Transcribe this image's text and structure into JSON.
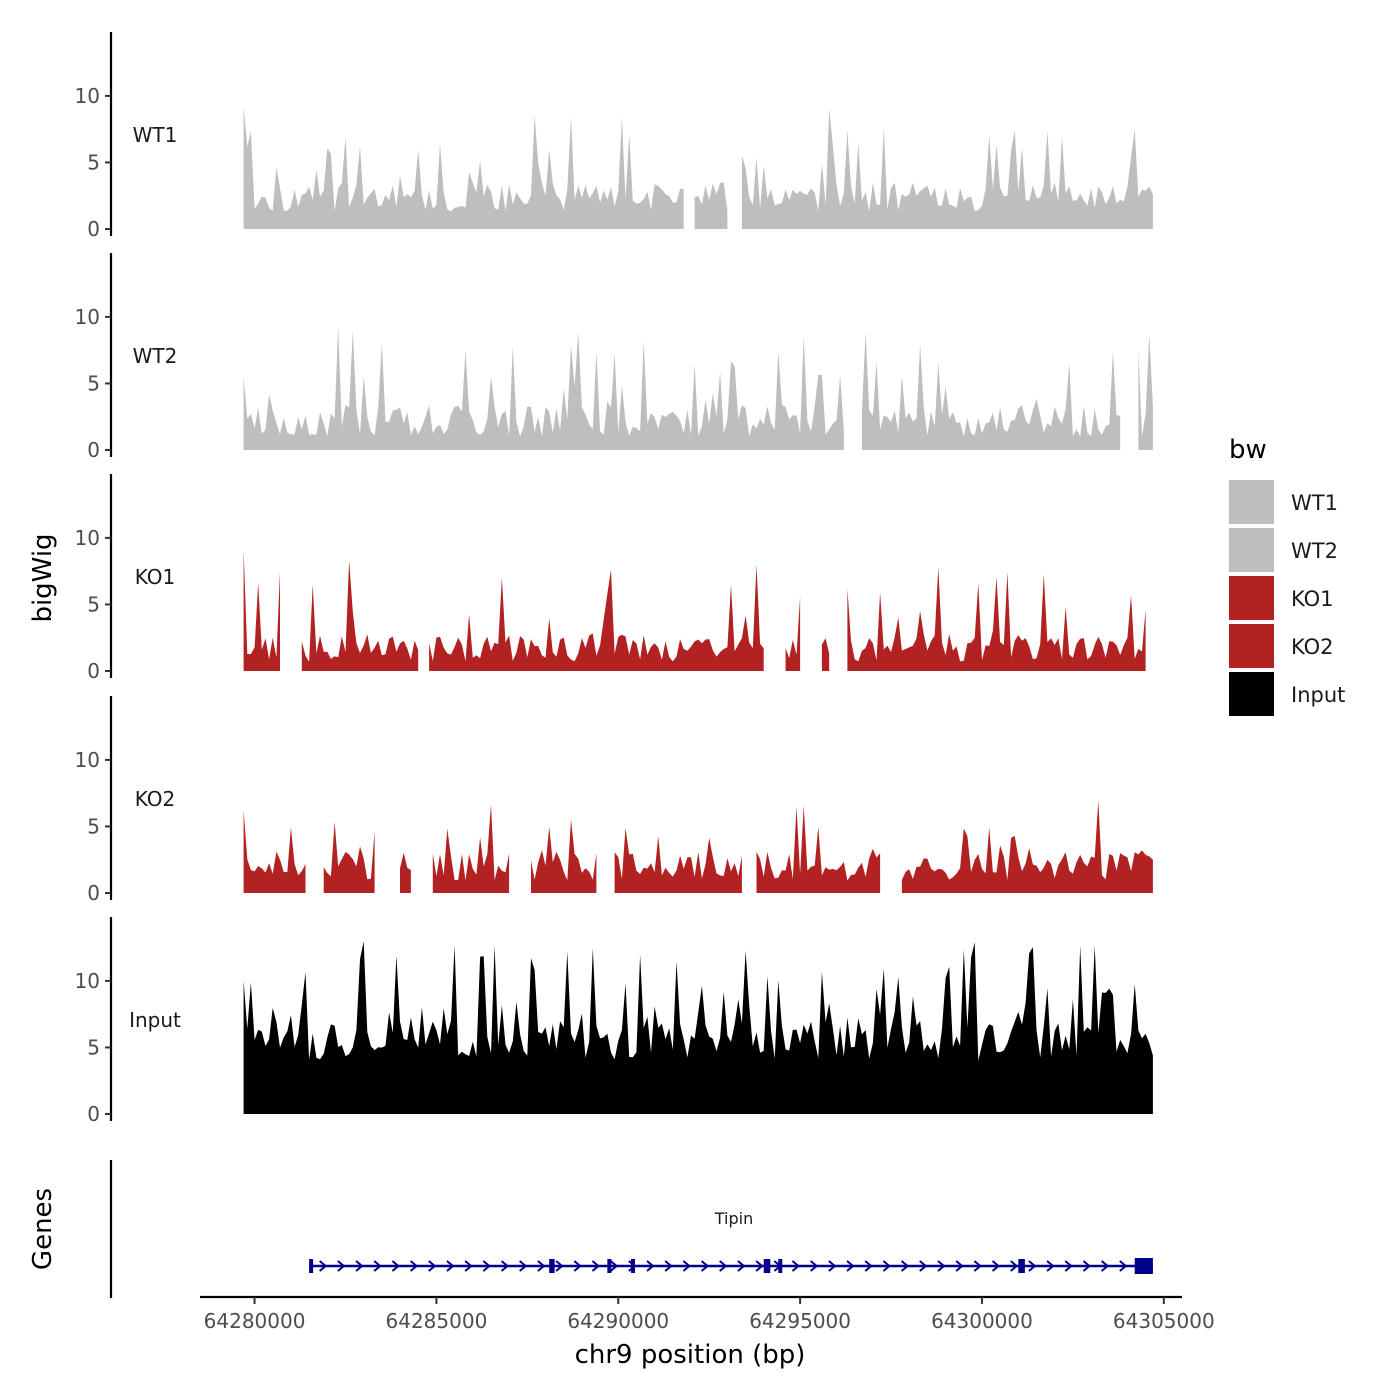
{
  "chart_data": {
    "type": "area",
    "chromosome": "chr9",
    "xlabel": "chr9 position (bp)",
    "ylabel": "bigWig",
    "genes_label": "Genes",
    "xlim": [
      64278500,
      64305500
    ],
    "x_ticks": [
      64280000,
      64285000,
      64290000,
      64295000,
      64300000,
      64305000
    ],
    "x_tick_labels": [
      "64280000",
      "64285000",
      "64290000",
      "64295000",
      "64300000",
      "64305000"
    ],
    "ylim": [
      0,
      14.5
    ],
    "y_ticks": [
      0,
      5,
      10
    ],
    "y_tick_labels": [
      "0",
      "5",
      "10"
    ],
    "data_range": [
      64279700,
      64304700
    ],
    "bin_size": 100,
    "grid": false,
    "legend": {
      "title": "bw",
      "position": "right",
      "entries": [
        {
          "label": "WT1",
          "color": "#bebebe"
        },
        {
          "label": "WT2",
          "color": "#bebebe"
        },
        {
          "label": "KO1",
          "color": "#b22222"
        },
        {
          "label": "KO2",
          "color": "#b22222"
        },
        {
          "label": "Input",
          "color": "#000000"
        }
      ]
    },
    "series": [
      {
        "name": "WT1",
        "color": "#bebebe",
        "seed": 11,
        "base": 1.3,
        "mean": 2.4,
        "max": 9.2,
        "peak_prob": 0.2,
        "gap_prob": 0.012,
        "gap_len": 3,
        "first": 9.2
      },
      {
        "name": "WT2",
        "color": "#bebebe",
        "seed": 23,
        "base": 1.0,
        "mean": 2.2,
        "max": 9.5,
        "peak_prob": 0.2,
        "gap_prob": 0.012,
        "gap_len": 3,
        "first": 5.5
      },
      {
        "name": "KO1",
        "color": "#b22222",
        "seed": 37,
        "base": 0.7,
        "mean": 1.7,
        "max": 9.1,
        "peak_prob": 0.2,
        "gap_prob": 0.018,
        "gap_len": 4,
        "first": 9.1
      },
      {
        "name": "KO2",
        "color": "#b22222",
        "seed": 51,
        "base": 0.9,
        "mean": 2.0,
        "max": 7.0,
        "peak_prob": 0.2,
        "gap_prob": 0.018,
        "gap_len": 4,
        "first": 6.2
      },
      {
        "name": "Input",
        "color": "#000000",
        "seed": 73,
        "base": 4.0,
        "mean": 5.5,
        "max": 13.9,
        "peak_prob": 0.3,
        "gap_prob": 0.0,
        "gap_len": 0,
        "first": 10.0
      }
    ],
    "gene": {
      "name": "Tipin",
      "start": 64281500,
      "end": 64304700,
      "strand": "+",
      "color": "#00008b",
      "exons": [
        {
          "start": 64281500,
          "end": 64281550
        },
        {
          "start": 64288100,
          "end": 64288250
        },
        {
          "start": 64289700,
          "end": 64289780
        },
        {
          "start": 64290350,
          "end": 64290420
        },
        {
          "start": 64294000,
          "end": 64294180
        },
        {
          "start": 64294400,
          "end": 64294460
        },
        {
          "start": 64301000,
          "end": 64301180
        },
        {
          "start": 64304200,
          "end": 64304700
        }
      ]
    }
  }
}
